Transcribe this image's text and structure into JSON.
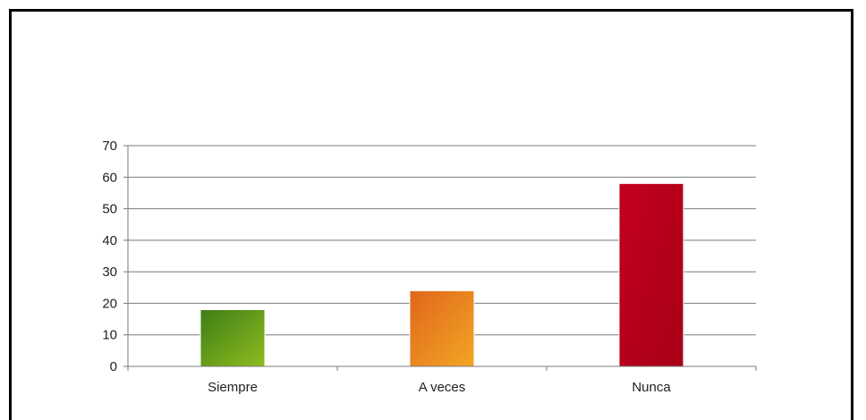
{
  "chart_data": {
    "type": "bar",
    "categories": [
      "Siempre",
      "A veces",
      "Nunca"
    ],
    "values": [
      18,
      24,
      58
    ],
    "ylim": [
      0,
      70
    ],
    "yticks": [
      0,
      10,
      20,
      30,
      40,
      50,
      60,
      70
    ],
    "grid": true,
    "legend": "none",
    "bar_colors": [
      {
        "from": "#3d7d17",
        "to": "#8fbc1e"
      },
      {
        "from": "#e0661c",
        "to": "#f2a624"
      },
      {
        "from": "#c3001e",
        "to": "#a80018"
      }
    ]
  }
}
